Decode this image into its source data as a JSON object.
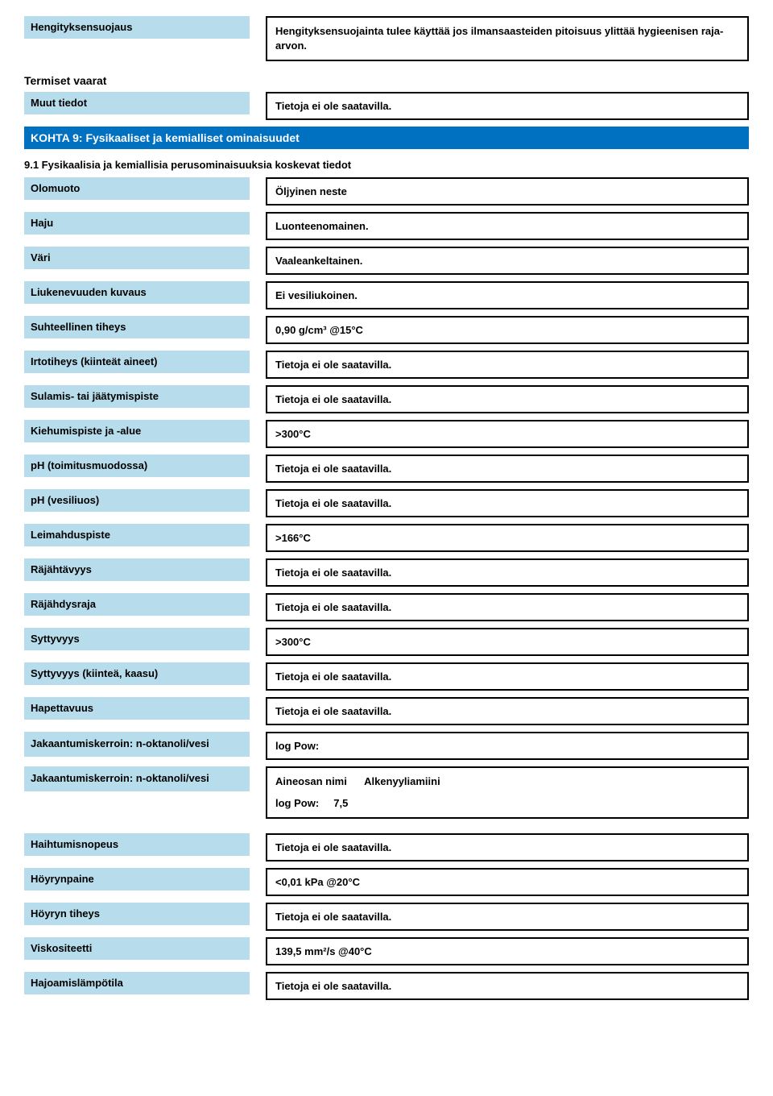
{
  "colors": {
    "label_bg": "#b7dded",
    "section_bg": "#0070c0",
    "section_text": "#ffffff",
    "border": "#000000",
    "page_bg": "#ffffff",
    "text": "#000000"
  },
  "fonts": {
    "family": "Arial",
    "base_size_pt": 10,
    "heading_size_pt": 11
  },
  "top": {
    "resp_protection": {
      "label": "Hengityksensuojaus",
      "value": "Hengityksensuojainta tulee käyttää jos ilmansaasteiden pitoisuus ylittää hygieenisen raja-arvon."
    },
    "thermal_hazards_heading": "Termiset vaarat",
    "other_info": {
      "label": "Muut tiedot",
      "value": "Tietoja ei ole saatavilla."
    }
  },
  "section9": {
    "title": "KOHTA 9: Fysikaaliset ja kemialliset ominaisuudet",
    "subsection": "9.1 Fysikaalisia ja kemiallisia perusominaisuuksia koskevat tiedot",
    "rows": [
      {
        "label": "Olomuoto",
        "value": "Öljyinen neste"
      },
      {
        "label": "Haju",
        "value": "Luonteenomainen."
      },
      {
        "label": "Väri",
        "value": "Vaaleankeltainen."
      },
      {
        "label": "Liukenevuuden kuvaus",
        "value": "Ei vesiliukoinen."
      },
      {
        "label": "Suhteellinen tiheys",
        "value": "0,90 g/cm³ @15°C"
      },
      {
        "label": "Irtotiheys (kiinteät aineet)",
        "value": "Tietoja ei ole saatavilla."
      },
      {
        "label": "Sulamis- tai jäätymispiste",
        "value": "Tietoja ei ole saatavilla."
      },
      {
        "label": "Kiehumispiste ja -alue",
        "value": ">300°C"
      },
      {
        "label": "pH (toimitusmuodossa)",
        "value": "Tietoja ei ole saatavilla."
      },
      {
        "label": "pH (vesiliuos)",
        "value": "Tietoja ei ole saatavilla."
      },
      {
        "label": "Leimahduspiste",
        "value": ">166°C"
      },
      {
        "label": "Räjähtävyys",
        "value": "Tietoja ei ole saatavilla."
      },
      {
        "label": "Räjähdysraja",
        "value": "Tietoja ei ole saatavilla."
      },
      {
        "label": "Syttyvyys",
        "value": ">300°C"
      },
      {
        "label": "Syttyvyys (kiinteä, kaasu)",
        "value": "Tietoja ei ole saatavilla."
      },
      {
        "label": "Hapettavuus",
        "value": "Tietoja ei ole saatavilla."
      }
    ],
    "partition1": {
      "label": "Jakaantumiskerroin: n-oktanoli/vesi",
      "value": "log Pow:"
    },
    "partition2": {
      "label": "Jakaantumiskerroin: n-oktanoli/vesi",
      "line1_label": "Aineosan nimi",
      "line1_value": "Alkenyyliamiini",
      "line2_label": "log Pow:",
      "line2_value": "7,5"
    },
    "rows2": [
      {
        "label": "Haihtumisnopeus",
        "value": "Tietoja ei ole saatavilla."
      },
      {
        "label": "Höyrynpaine",
        "value": "<0,01 kPa @20°C"
      },
      {
        "label": "Höyryn tiheys",
        "value": "Tietoja ei ole saatavilla."
      },
      {
        "label": "Viskositeetti",
        "value": "139,5 mm²/s @40°C"
      },
      {
        "label": "Hajoamislämpötila",
        "value": "Tietoja ei ole saatavilla."
      }
    ]
  }
}
